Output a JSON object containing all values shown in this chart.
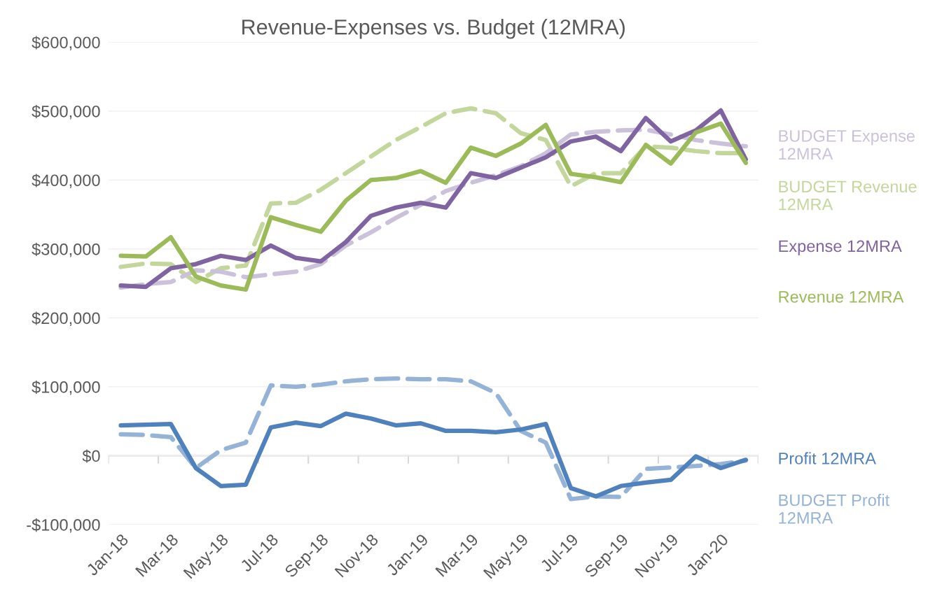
{
  "chart_data": {
    "type": "line",
    "title": "Revenue-Expenses vs. Budget (12MRA)",
    "categories": [
      "Jan-18",
      null,
      "Mar-18",
      null,
      "May-18",
      null,
      "Jul-18",
      null,
      "Sep-18",
      null,
      "Nov-18",
      null,
      "Jan-19",
      null,
      "Mar-19",
      null,
      "May-19",
      null,
      "Jul-19",
      null,
      "Sep-19",
      null,
      "Nov-19",
      null,
      "Jan-20",
      null
    ],
    "series": [
      {
        "name": "BUDGET Revenue 12MRA",
        "color": "#c3d69b",
        "line_style": "dashed",
        "values": [
          274000,
          279000,
          278000,
          252000,
          272000,
          276000,
          366000,
          367000,
          386000,
          410000,
          434000,
          458000,
          477000,
          497000,
          504000,
          497000,
          468000,
          458000,
          391000,
          410000,
          410000,
          449000,
          447000,
          442000,
          439000,
          439000
        ]
      },
      {
        "name": "BUDGET Expense 12MRA",
        "color": "#ccc1da",
        "line_style": "dashed",
        "values": [
          244000,
          249000,
          252000,
          269000,
          267000,
          259000,
          263000,
          267000,
          278000,
          305000,
          324000,
          345000,
          364000,
          384000,
          396000,
          407000,
          420000,
          439000,
          466000,
          470000,
          472000,
          473000,
          466000,
          458000,
          453000,
          449000
        ]
      },
      {
        "name": "BUDGET Profit 12MRA",
        "color": "#95b3d7",
        "line_style": "dashed",
        "values": [
          31000,
          30000,
          27000,
          -18000,
          8000,
          19000,
          102000,
          100000,
          103000,
          108000,
          111000,
          112000,
          111000,
          111000,
          108000,
          91000,
          36000,
          19000,
          -63000,
          -59000,
          -60000,
          -19000,
          -17000,
          -15000,
          -12000,
          -7000
        ]
      },
      {
        "name": "Expense 12MRA",
        "color": "#8064a2",
        "line_style": "solid",
        "values": [
          247000,
          245000,
          272000,
          278000,
          290000,
          284000,
          305000,
          287000,
          282000,
          310000,
          348000,
          360000,
          367000,
          360000,
          410000,
          403000,
          418000,
          433000,
          456000,
          463000,
          442000,
          490000,
          456000,
          472000,
          501000,
          430000
        ]
      },
      {
        "name": "Revenue 12MRA",
        "color": "#9bbb59",
        "line_style": "solid",
        "values": [
          290000,
          289000,
          317000,
          260000,
          247000,
          241000,
          346000,
          335000,
          325000,
          370000,
          400000,
          403000,
          413000,
          396000,
          447000,
          435000,
          453000,
          480000,
          409000,
          404000,
          397000,
          451000,
          424000,
          469000,
          482000,
          425000
        ]
      },
      {
        "name": "Profit 12MRA",
        "color": "#4f81bd",
        "line_style": "solid",
        "values": [
          44000,
          45000,
          46000,
          -18000,
          -44000,
          -42000,
          41000,
          48000,
          43000,
          61000,
          54000,
          44000,
          47000,
          36000,
          36000,
          34000,
          38000,
          46000,
          -47000,
          -59000,
          -44000,
          -39000,
          -35000,
          -1000,
          -18000,
          -6000
        ]
      }
    ],
    "ylim": [
      -100000,
      600000
    ],
    "yticks": [
      {
        "value": -100000,
        "label": "-$100,000"
      },
      {
        "value": 0,
        "label": "$0"
      },
      {
        "value": 100000,
        "label": "$100,000"
      },
      {
        "value": 200000,
        "label": "$200,000"
      },
      {
        "value": 300000,
        "label": "$300,000"
      },
      {
        "value": 400000,
        "label": "$400,000"
      },
      {
        "value": 500000,
        "label": "$500,000"
      },
      {
        "value": 600000,
        "label": "$600,000"
      }
    ],
    "grid": "y",
    "legend": "right",
    "marker": "none"
  }
}
